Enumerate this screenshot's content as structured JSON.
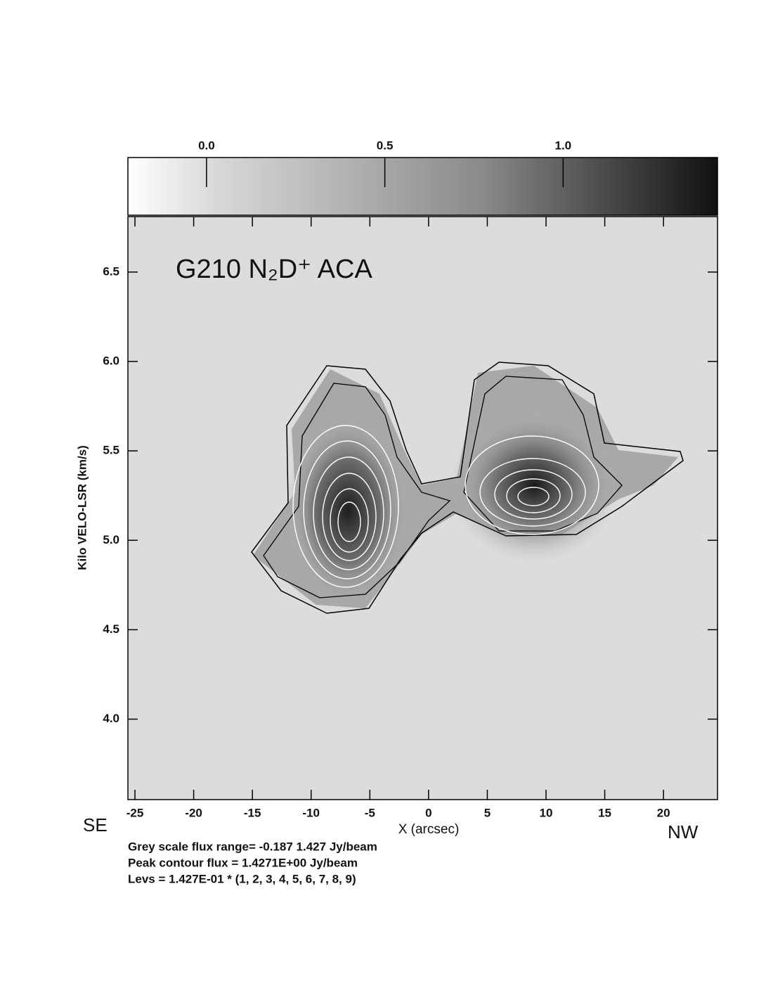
{
  "chart_data": {
    "type": "contour",
    "title": "G210  N₂D⁺  ACA",
    "xlabel": "X (arcsec)",
    "ylabel": "Kilo VELO-LSR  (km/s)",
    "left_label": "SE",
    "right_label": "NW",
    "xlim": [
      -25.6,
      24.6
    ],
    "ylim": [
      3.55,
      6.81
    ],
    "xticks": [
      -25,
      -20,
      -15,
      -10,
      -5,
      0,
      5,
      10,
      15,
      20
    ],
    "yticks": [
      {
        "value": 4.0,
        "label": "4.0"
      },
      4.5,
      {
        "value": 5.0,
        "label": "5.0"
      },
      5.5,
      {
        "value": 6.0,
        "label": "6.0"
      },
      6.5
    ],
    "clim": [
      -0.187,
      1.427
    ],
    "cticks": [
      {
        "value": 0,
        "label": "0.0"
      },
      0.5,
      {
        "value": 1,
        "label": "1.0"
      }
    ],
    "notes": [
      "Grey scale flux range= -0.187 1.427 Jy/beam",
      "Peak contour flux =  1.4271E+00 Jy/beam",
      "Levs = 1.427E-01 * (1, 2, 3, 4, 5, 6, 7, 8, 9)"
    ]
  }
}
